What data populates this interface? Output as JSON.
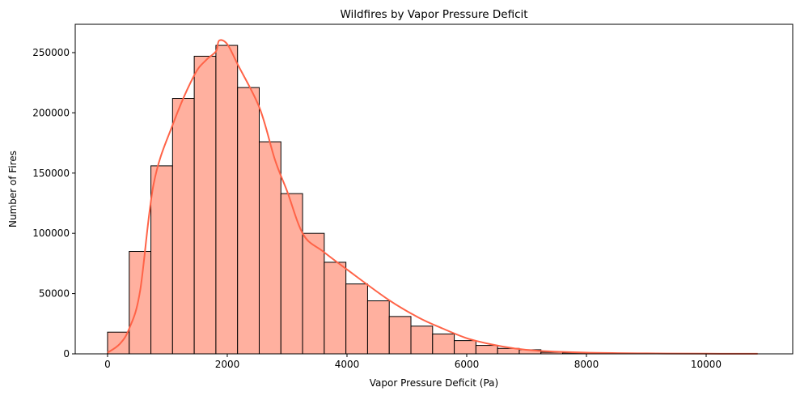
{
  "chart_data": {
    "type": "bar",
    "title": "Wildfires by Vapor Pressure Deficit",
    "xlabel": "Vapor Pressure Deficit (Pa)",
    "ylabel": "Number of Fires",
    "xlim": [
      -540,
      11446
    ],
    "ylim": [
      0,
      273500
    ],
    "xticks": [
      0,
      2000,
      4000,
      6000,
      8000,
      10000
    ],
    "yticks": [
      0,
      50000,
      100000,
      150000,
      200000,
      250000
    ],
    "grid": false,
    "bin_edges_start": 0,
    "bin_width": 362,
    "values": [
      18000,
      85000,
      156000,
      212000,
      247000,
      256000,
      221000,
      176000,
      133000,
      100000,
      76000,
      58000,
      44000,
      31000,
      23000,
      16500,
      11000,
      7000,
      4500,
      3400,
      1300,
      800,
      500,
      300,
      200,
      150,
      100,
      80,
      60,
      40
    ],
    "bar_color": "#ffb09f",
    "edge_color": "#000000",
    "kde": {
      "color": "#ff6347",
      "x": [
        0,
        200,
        362,
        543,
        770,
        1095,
        1446,
        1650,
        1811,
        1865,
        2000,
        2176,
        2540,
        2797,
        3000,
        3270,
        3600,
        4000,
        4690,
        5200,
        5600,
        6000,
        6400,
        6800,
        7200,
        8000,
        9000,
        10000,
        10860
      ],
      "y": [
        1000,
        8000,
        21000,
        52000,
        141000,
        191000,
        231000,
        244000,
        251000,
        260000,
        257000,
        240000,
        204000,
        161000,
        135000,
        99000,
        85000,
        70000,
        45000,
        30000,
        21000,
        13000,
        8000,
        4500,
        2500,
        1000,
        400,
        150,
        50
      ]
    }
  }
}
